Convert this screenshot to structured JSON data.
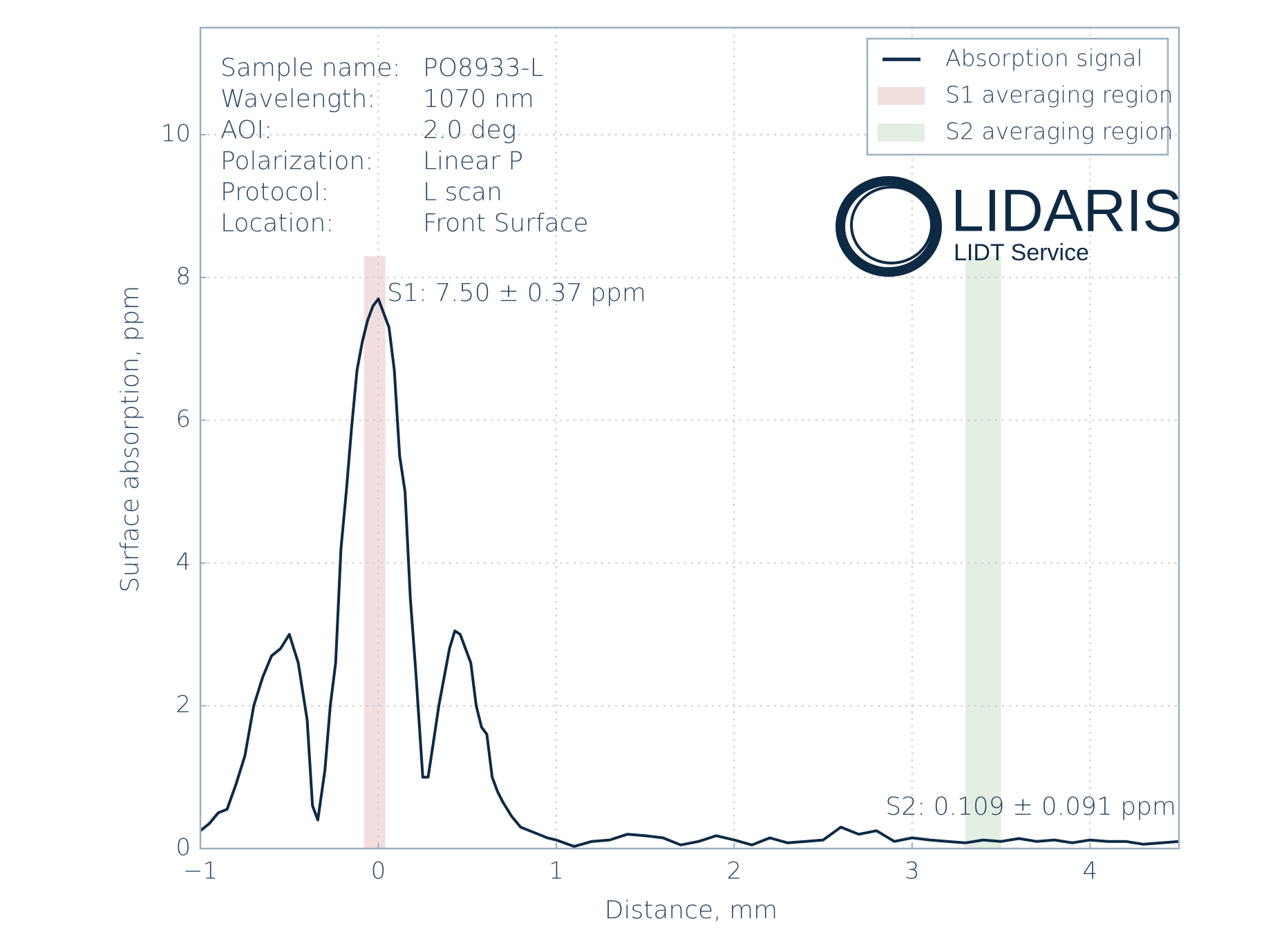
{
  "chart_data": {
    "type": "line",
    "xlabel": "Distance, mm",
    "ylabel": "Surface absorption, ppm",
    "xlim": [
      -1,
      4.5
    ],
    "ylim": [
      0,
      11.5
    ],
    "xticks": [
      {
        "value": -1,
        "label": "−1"
      },
      0,
      1,
      2,
      3,
      4
    ],
    "yticks": [
      0,
      2,
      4,
      6,
      8,
      10
    ],
    "grid": true,
    "series": [
      {
        "name": "Absorption signal",
        "color": "#0d2a45",
        "x": [
          -1,
          -0.95,
          -0.9,
          -0.85,
          -0.8,
          -0.75,
          -0.7,
          -0.65,
          -0.6,
          -0.55,
          -0.5,
          -0.45,
          -0.4,
          -0.37,
          -0.34,
          -0.3,
          -0.27,
          -0.24,
          -0.21,
          -0.18,
          -0.15,
          -0.12,
          -0.09,
          -0.06,
          -0.03,
          0,
          0.03,
          0.06,
          0.09,
          0.12,
          0.15,
          0.18,
          0.21,
          0.25,
          0.28,
          0.31,
          0.34,
          0.37,
          0.4,
          0.43,
          0.46,
          0.49,
          0.52,
          0.55,
          0.58,
          0.61,
          0.64,
          0.67,
          0.7,
          0.75,
          0.8,
          0.85,
          0.9,
          0.95,
          1.0,
          1.1,
          1.2,
          1.3,
          1.4,
          1.5,
          1.6,
          1.7,
          1.8,
          1.9,
          2.0,
          2.1,
          2.2,
          2.3,
          2.4,
          2.5,
          2.6,
          2.7,
          2.8,
          2.9,
          3.0,
          3.1,
          3.2,
          3.3,
          3.4,
          3.5,
          3.6,
          3.7,
          3.8,
          3.9,
          4.0,
          4.1,
          4.2,
          4.3,
          4.4,
          4.5
        ],
        "values": [
          0.25,
          0.35,
          0.5,
          0.55,
          0.9,
          1.3,
          2.0,
          2.4,
          2.7,
          2.8,
          3.0,
          2.6,
          1.8,
          0.6,
          0.4,
          1.1,
          2.0,
          2.6,
          4.2,
          5.0,
          5.9,
          6.7,
          7.1,
          7.4,
          7.6,
          7.7,
          7.5,
          7.3,
          6.7,
          5.5,
          5.0,
          3.5,
          2.5,
          1.0,
          1.0,
          1.5,
          2.0,
          2.4,
          2.8,
          3.05,
          3.0,
          2.8,
          2.6,
          2.0,
          1.7,
          1.6,
          1.0,
          0.8,
          0.65,
          0.45,
          0.3,
          0.25,
          0.2,
          0.15,
          0.12,
          0.03,
          0.1,
          0.12,
          0.2,
          0.18,
          0.15,
          0.05,
          0.1,
          0.18,
          0.12,
          0.05,
          0.15,
          0.08,
          0.1,
          0.12,
          0.3,
          0.2,
          0.25,
          0.1,
          0.15,
          0.12,
          0.1,
          0.08,
          0.12,
          0.1,
          0.14,
          0.1,
          0.12,
          0.08,
          0.12,
          0.1,
          0.1,
          0.06,
          0.08,
          0.1
        ]
      }
    ],
    "regions": [
      {
        "name": "S1 averaging region",
        "color": "#f3dede",
        "xlim": [
          -0.08,
          0.04
        ],
        "top": 8.3
      },
      {
        "name": "S2 averaging region",
        "color": "#e3efe3",
        "xlim": [
          3.3,
          3.5
        ],
        "top": 8.3
      }
    ],
    "annotations": [
      "S1: 7.50 ± 0.37 ppm",
      "S2: 0.109 ± 0.091 ppm"
    ],
    "info": [
      [
        "Sample name:",
        "PO8933-L"
      ],
      [
        "Wavelength:",
        "1070 nm"
      ],
      [
        "AOI:",
        "2.0 deg"
      ],
      [
        "Polarization:",
        "Linear P"
      ],
      [
        "Protocol:",
        "L scan"
      ],
      [
        "Location:",
        "Front Surface"
      ]
    ],
    "logo": {
      "title": "LIDARIS",
      "subtitle": "LIDT Service"
    }
  }
}
